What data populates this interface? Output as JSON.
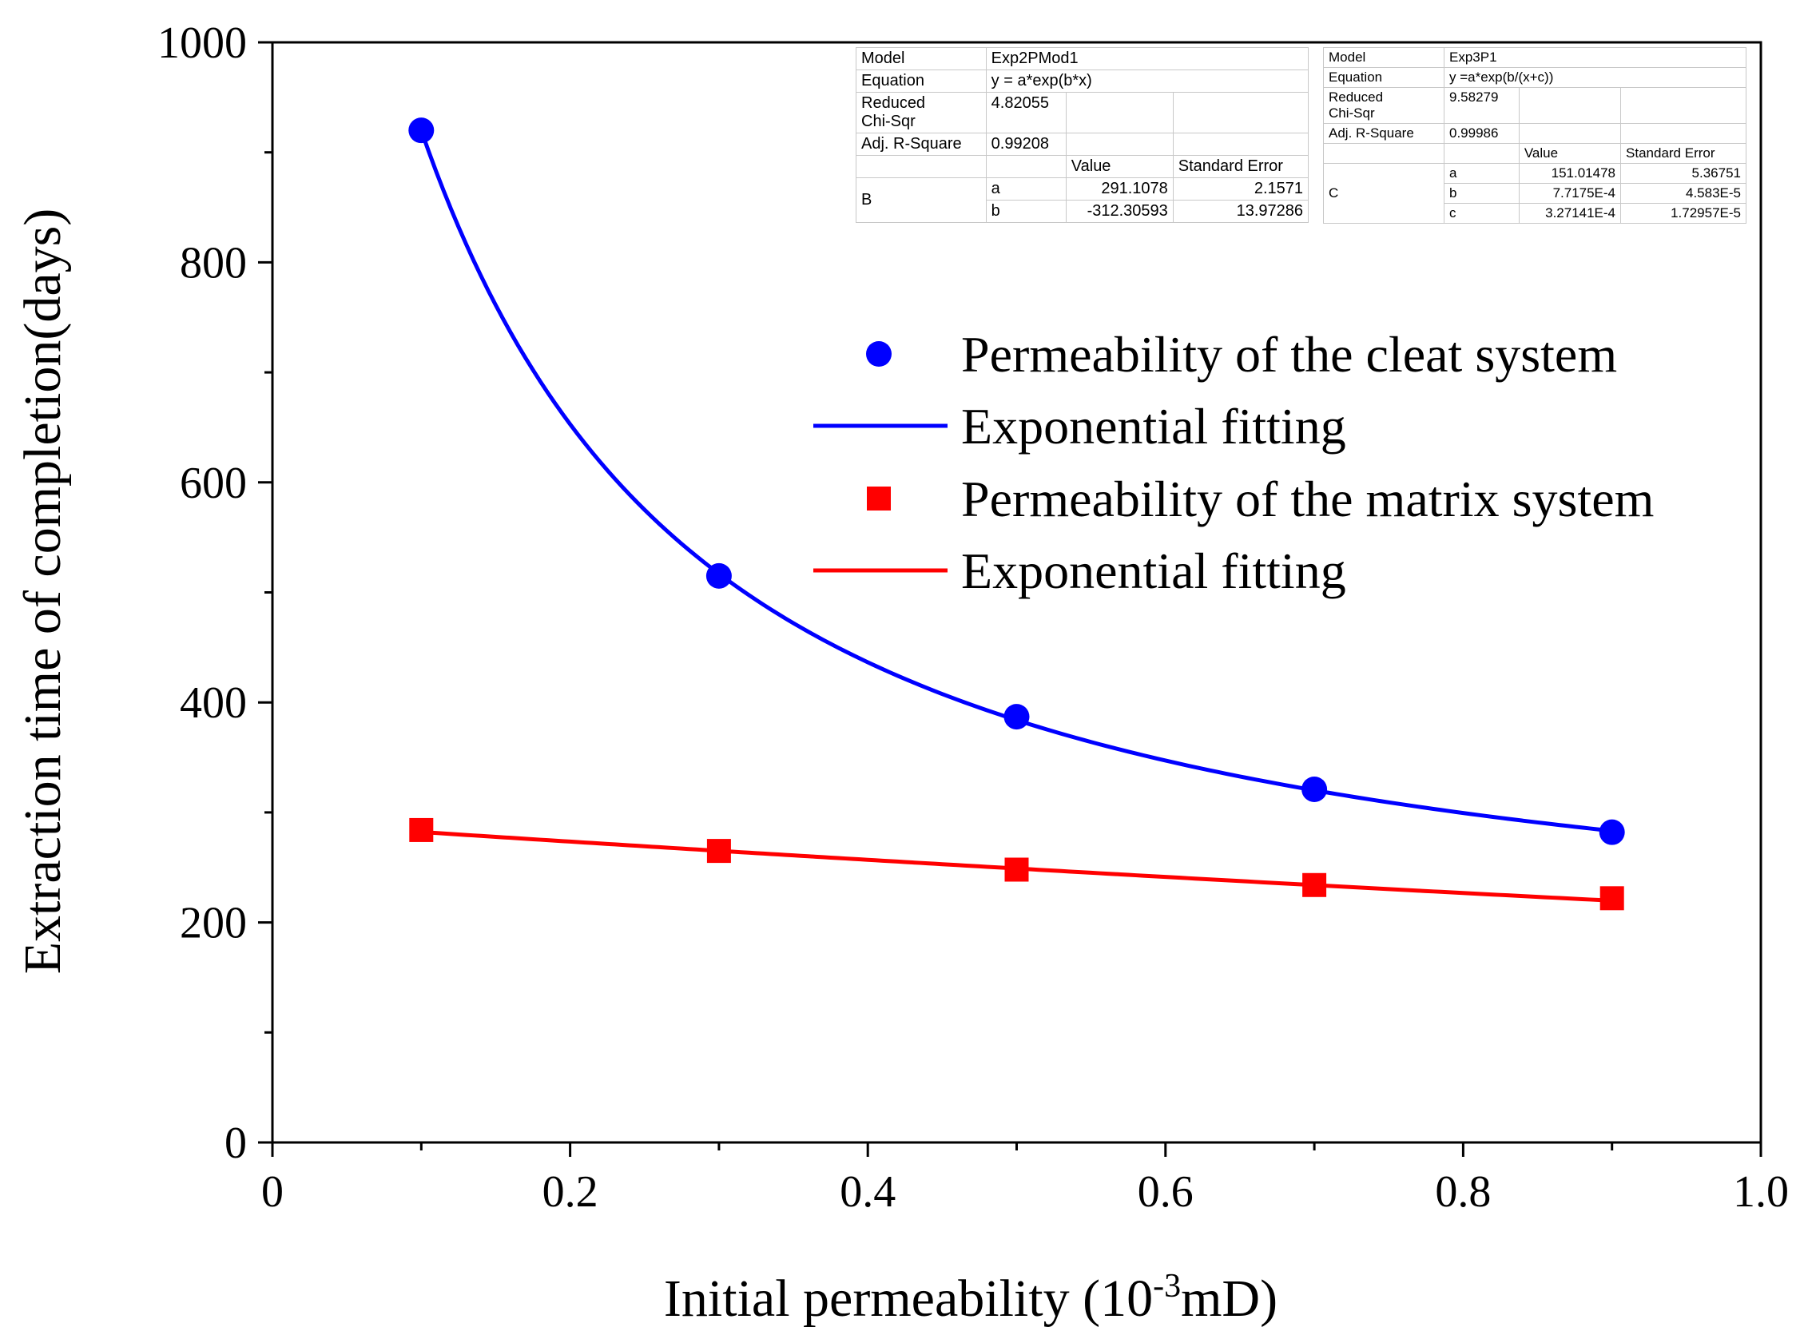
{
  "chart_data": {
    "type": "scatter",
    "title": "",
    "xlabel": "Initial  permeability (10",
    "xlabel_sup": "-3",
    "xlabel_tail": "mD)",
    "ylabel": "Extraction time of completion(days)",
    "xlim": [
      0,
      1.0
    ],
    "ylim": [
      0,
      1000
    ],
    "xticks": [
      "0",
      "0.2",
      "0.4",
      "0.6",
      "0.8",
      "1.0"
    ],
    "yticks": [
      "0",
      "200",
      "400",
      "600",
      "800",
      "1000"
    ],
    "series": [
      {
        "name": "Permeability of the cleat system",
        "marker": "circle",
        "color": "#0000ff",
        "x": [
          0.1,
          0.3,
          0.5,
          0.7,
          0.9
        ],
        "y": [
          920,
          515,
          387,
          321,
          282
        ]
      },
      {
        "name": "Permeability of the matrix system",
        "marker": "square",
        "color": "#ff0000",
        "x": [
          0.1,
          0.3,
          0.5,
          0.7,
          0.9
        ],
        "y": [
          284,
          265,
          248,
          234,
          222
        ]
      }
    ],
    "fits": [
      {
        "name": "Exponential fitting",
        "color": "#0000ff",
        "model": "Exp3P1",
        "a": 151.01478,
        "b": 0.00077175,
        "c": 0.000327141
      },
      {
        "name": "Exponential fitting",
        "color": "#ff0000",
        "model": "Exp2PMod1",
        "a": 291.1078,
        "b": -312.30593
      }
    ],
    "legend": [
      {
        "label": "Permeability of the cleat system",
        "kind": "circle",
        "color": "#0000ff"
      },
      {
        "label": "Exponential fitting",
        "kind": "line",
        "color": "#0000ff"
      },
      {
        "label": "Permeability of the matrix system",
        "kind": "square",
        "color": "#ff0000"
      },
      {
        "label": "Exponential fitting",
        "kind": "line",
        "color": "#ff0000"
      }
    ]
  },
  "fit_table_b": {
    "model_label": "Model",
    "model": "Exp2PMod1",
    "equation_label": "Equation",
    "equation": "y = a*exp(b*x)",
    "chi_label_1": "Reduced",
    "chi_label_2": "Chi-Sqr",
    "chi": "4.82055",
    "r2_label": "Adj. R-Square",
    "r2": "0.99208",
    "value_header": "Value",
    "error_header": "Standard Error",
    "group": "B",
    "params": [
      {
        "name": "a",
        "value": "291.1078",
        "error": "2.1571"
      },
      {
        "name": "b",
        "value": "-312.30593",
        "error": "13.97286"
      }
    ]
  },
  "fit_table_c": {
    "model_label": "Model",
    "model": "Exp3P1",
    "equation_label": "Equation",
    "equation": "y =a*exp(b/(x+c))",
    "chi_label_1": "Reduced",
    "chi_label_2": "Chi-Sqr",
    "chi": "9.58279",
    "r2_label": "Adj. R-Square",
    "r2": "0.99986",
    "value_header": "Value",
    "error_header": "Standard Error",
    "group": "C",
    "params": [
      {
        "name": "a",
        "value": "151.01478",
        "error": "5.36751"
      },
      {
        "name": "b",
        "value": "7.7175E-4",
        "error": "4.583E-5"
      },
      {
        "name": "c",
        "value": "3.27141E-4",
        "error": "1.72957E-5"
      }
    ]
  }
}
